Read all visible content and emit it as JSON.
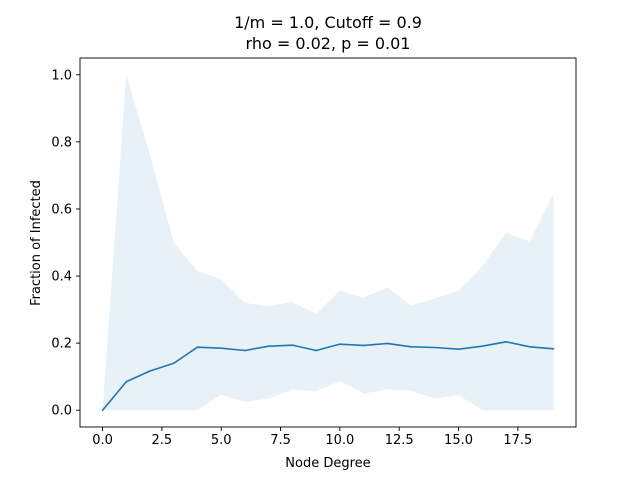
{
  "chart_data": {
    "type": "line",
    "title": "1/m = 1.0, Cutoff = 0.9",
    "subtitle": "rho = 0.02, p = 0.01",
    "xlabel": "Node Degree",
    "ylabel": "Fraction of Infected",
    "xlim": [
      -0.95,
      19.95
    ],
    "ylim": [
      -0.05,
      1.05
    ],
    "xticks": [
      0.0,
      2.5,
      5.0,
      7.5,
      10.0,
      12.5,
      15.0,
      17.5
    ],
    "xtick_labels": [
      "0.0",
      "2.5",
      "5.0",
      "7.5",
      "10.0",
      "12.5",
      "15.0",
      "17.5"
    ],
    "yticks": [
      0.0,
      0.2,
      0.4,
      0.6,
      0.8,
      1.0
    ],
    "ytick_labels": [
      "0.0",
      "0.2",
      "0.4",
      "0.6",
      "0.8",
      "1.0"
    ],
    "grid": false,
    "colors": {
      "line": "#1f77b4",
      "band": "#1f77b4",
      "band_opacity": 0.1
    },
    "x": [
      0,
      1,
      2,
      3,
      4,
      5,
      6,
      7,
      8,
      9,
      10,
      11,
      12,
      13,
      14,
      15,
      16,
      17,
      18,
      19
    ],
    "series": [
      {
        "values": [
          0.0,
          0.085,
          0.117,
          0.14,
          0.188,
          0.185,
          0.178,
          0.191,
          0.194,
          0.178,
          0.197,
          0.193,
          0.199,
          0.189,
          0.187,
          0.182,
          0.191,
          0.204,
          0.189,
          0.183
        ],
        "band_upper": [
          0.0,
          1.0,
          0.76,
          0.5,
          0.415,
          0.39,
          0.32,
          0.31,
          0.323,
          0.287,
          0.357,
          0.335,
          0.366,
          0.312,
          0.333,
          0.356,
          0.429,
          0.529,
          0.503,
          0.645
        ],
        "band_lower": [
          0.0,
          0.0,
          0.0,
          0.0,
          0.0,
          0.046,
          0.025,
          0.035,
          0.062,
          0.057,
          0.087,
          0.05,
          0.062,
          0.058,
          0.035,
          0.045,
          0.0,
          0.0,
          0.0,
          0.0
        ]
      }
    ]
  }
}
